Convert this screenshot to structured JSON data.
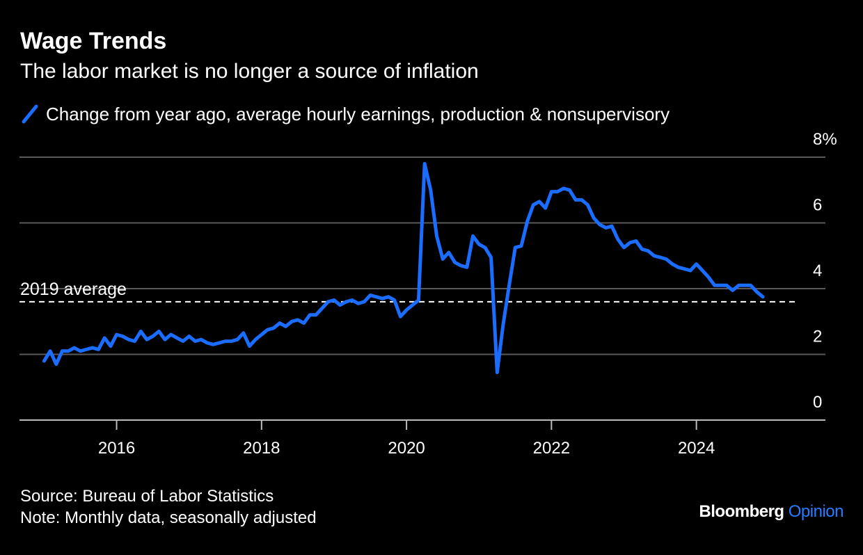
{
  "header": {
    "title": "Wage Trends",
    "subtitle": "The labor market is no longer a source of inflation"
  },
  "legend": {
    "label": "Change from year ago, average hourly earnings, production & nonsupervisory"
  },
  "footer": {
    "source": "Source: Bureau of Labor Statistics",
    "note": "Note: Monthly data, seasonally adjusted"
  },
  "logo": {
    "brand": "Bloomberg",
    "product": "Opinion"
  },
  "colors": {
    "background": "#000000",
    "series": "#1a6dff",
    "grid": "#5a5a5a",
    "text": "#ffffff",
    "product": "#2a7bff"
  },
  "chart_data": {
    "type": "line",
    "title": "Wage Trends",
    "subtitle": "The labor market is no longer a source of inflation",
    "xlabel": "",
    "ylabel": "",
    "x_range": [
      2014.66,
      2025.78
    ],
    "ylim": [
      0,
      8
    ],
    "y_ticks": [
      0,
      2,
      4,
      6,
      8
    ],
    "y_tick_labels": [
      "0",
      "2",
      "4",
      "6",
      "8%"
    ],
    "x_ticks": [
      2016,
      2018,
      2020,
      2022,
      2024
    ],
    "x_tick_labels": [
      "2016",
      "2018",
      "2020",
      "2022",
      "2024"
    ],
    "grid": true,
    "y_axis_position": "right",
    "legend_position": "top-left",
    "reference_line": {
      "label": "2019 average",
      "value": 3.6,
      "style": "dashed"
    },
    "series": [
      {
        "name": "Change from year ago, average hourly earnings, production & nonsupervisory",
        "x": [
          "2015-01",
          "2015-02",
          "2015-03",
          "2015-04",
          "2015-05",
          "2015-06",
          "2015-07",
          "2015-08",
          "2015-09",
          "2015-10",
          "2015-11",
          "2015-12",
          "2016-01",
          "2016-02",
          "2016-03",
          "2016-04",
          "2016-05",
          "2016-06",
          "2016-07",
          "2016-08",
          "2016-09",
          "2016-10",
          "2016-11",
          "2016-12",
          "2017-01",
          "2017-02",
          "2017-03",
          "2017-04",
          "2017-05",
          "2017-06",
          "2017-07",
          "2017-08",
          "2017-09",
          "2017-10",
          "2017-11",
          "2017-12",
          "2018-01",
          "2018-02",
          "2018-03",
          "2018-04",
          "2018-05",
          "2018-06",
          "2018-07",
          "2018-08",
          "2018-09",
          "2018-10",
          "2018-11",
          "2018-12",
          "2019-01",
          "2019-02",
          "2019-03",
          "2019-04",
          "2019-05",
          "2019-06",
          "2019-07",
          "2019-08",
          "2019-09",
          "2019-10",
          "2019-11",
          "2019-12",
          "2020-01",
          "2020-02",
          "2020-03",
          "2020-04",
          "2020-05",
          "2020-06",
          "2020-07",
          "2020-08",
          "2020-09",
          "2020-10",
          "2020-11",
          "2020-12",
          "2021-01",
          "2021-02",
          "2021-03",
          "2021-04",
          "2021-05",
          "2021-06",
          "2021-07",
          "2021-08",
          "2021-09",
          "2021-10",
          "2021-11",
          "2021-12",
          "2022-01",
          "2022-02",
          "2022-03",
          "2022-04",
          "2022-05",
          "2022-06",
          "2022-07",
          "2022-08",
          "2022-09",
          "2022-10",
          "2022-11",
          "2022-12",
          "2023-01",
          "2023-02",
          "2023-03",
          "2023-04",
          "2023-05",
          "2023-06",
          "2023-07",
          "2023-08",
          "2023-09",
          "2023-10",
          "2023-11",
          "2023-12",
          "2024-01",
          "2024-02",
          "2024-03",
          "2024-04",
          "2024-05",
          "2024-06",
          "2024-07",
          "2024-08",
          "2024-09",
          "2024-10",
          "2024-11",
          "2024-12"
        ],
        "values": [
          1.8,
          2.1,
          1.7,
          2.1,
          2.1,
          2.2,
          2.1,
          2.15,
          2.2,
          2.15,
          2.5,
          2.25,
          2.6,
          2.55,
          2.45,
          2.4,
          2.7,
          2.45,
          2.55,
          2.7,
          2.45,
          2.6,
          2.5,
          2.4,
          2.55,
          2.4,
          2.45,
          2.35,
          2.3,
          2.35,
          2.4,
          2.4,
          2.45,
          2.65,
          2.25,
          2.45,
          2.6,
          2.75,
          2.8,
          2.95,
          2.85,
          3.0,
          3.05,
          2.95,
          3.2,
          3.2,
          3.4,
          3.6,
          3.65,
          3.5,
          3.6,
          3.65,
          3.55,
          3.6,
          3.8,
          3.75,
          3.7,
          3.75,
          3.65,
          3.15,
          3.35,
          3.5,
          3.65,
          7.8,
          7.0,
          5.6,
          4.9,
          5.1,
          4.8,
          4.7,
          4.65,
          5.6,
          5.35,
          5.25,
          4.95,
          1.45,
          2.9,
          4.1,
          5.25,
          5.3,
          6.05,
          6.55,
          6.65,
          6.45,
          6.95,
          6.95,
          7.05,
          7.0,
          6.7,
          6.7,
          6.55,
          6.15,
          5.95,
          5.85,
          5.9,
          5.5,
          5.25,
          5.4,
          5.45,
          5.2,
          5.15,
          5.0,
          4.95,
          4.9,
          4.75,
          4.65,
          4.6,
          4.55,
          4.75,
          4.55,
          4.35,
          4.1,
          4.1,
          4.1,
          3.95,
          4.1,
          4.1,
          4.1,
          3.9,
          3.75
        ]
      }
    ]
  }
}
